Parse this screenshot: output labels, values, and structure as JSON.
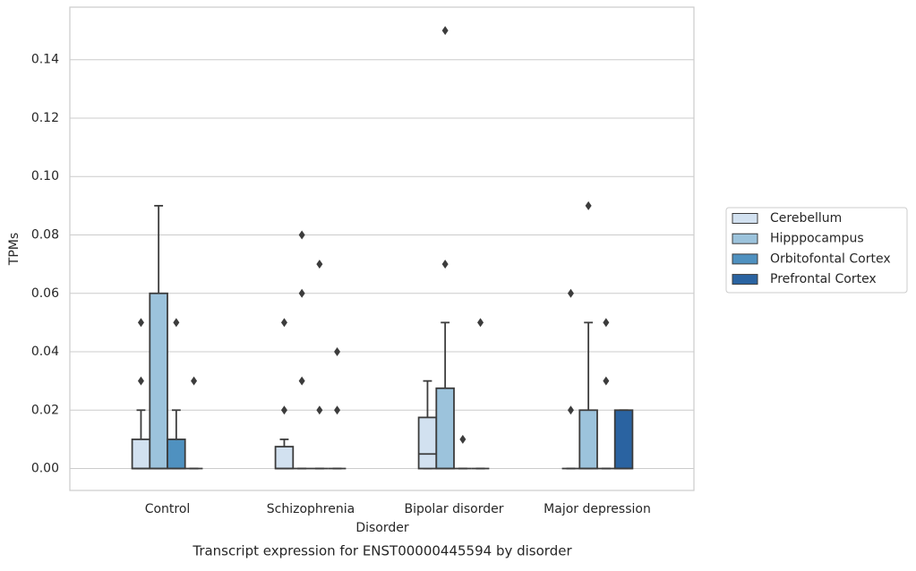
{
  "chart_data": {
    "type": "box",
    "title": "Transcript expression for ENST00000445594 by disorder",
    "x_label": "Disorder",
    "y_label": "TPMs",
    "categories": [
      "Control",
      "Schizophrenia",
      "Bipolar disorder",
      "Major depression"
    ],
    "ylim": [
      -0.0075,
      0.158
    ],
    "yticks": [
      {
        "value": 0,
        "label": "0.00"
      },
      {
        "value": 0.02,
        "label": "0.02"
      },
      {
        "value": 0.04,
        "label": "0.04"
      },
      {
        "value": 0.06,
        "label": "0.06"
      },
      {
        "value": 0.08,
        "label": "0.08"
      },
      {
        "value": 0.1,
        "label": "0.10"
      },
      {
        "value": 0.12,
        "label": "0.12"
      },
      {
        "value": 0.14,
        "label": "0.14"
      }
    ],
    "grid": "y",
    "legend": "right",
    "series": [
      {
        "name": "Cerebellum",
        "color": "#d2e1f0",
        "values": [
          {
            "min": 0,
            "q1": 0,
            "median": 0,
            "q3": 0.01,
            "max": 0.02,
            "outliers": [
              0.03,
              0.05
            ]
          },
          {
            "min": 0,
            "q1": 0,
            "median": 0,
            "q3": 0.0075,
            "max": 0.01,
            "outliers": [
              0.02,
              0.05
            ]
          },
          {
            "min": 0,
            "q1": 0,
            "median": 0.005,
            "q3": 0.0175,
            "max": 0.03,
            "outliers": []
          },
          {
            "min": 0,
            "q1": 0,
            "median": 0,
            "q3": 0,
            "max": 0,
            "outliers": [
              0.02,
              0.06
            ]
          }
        ]
      },
      {
        "name": "Hipppocampus",
        "color": "#9cc3dc",
        "values": [
          {
            "min": 0,
            "q1": 0,
            "median": 0,
            "q3": 0.06,
            "max": 0.09,
            "outliers": []
          },
          {
            "min": 0,
            "q1": 0,
            "median": 0,
            "q3": 0,
            "max": 0,
            "outliers": [
              0.03,
              0.06,
              0.08
            ]
          },
          {
            "min": 0,
            "q1": 0,
            "median": 0,
            "q3": 0.0275,
            "max": 0.05,
            "outliers": [
              0.07,
              0.15
            ]
          },
          {
            "min": 0,
            "q1": 0,
            "median": 0,
            "q3": 0.02,
            "max": 0.05,
            "outliers": [
              0.09
            ]
          }
        ]
      },
      {
        "name": "Orbitofontal Cortex",
        "color": "#4f91c0",
        "values": [
          {
            "min": 0,
            "q1": 0,
            "median": 0,
            "q3": 0.01,
            "max": 0.02,
            "outliers": [
              0.05
            ]
          },
          {
            "min": 0,
            "q1": 0,
            "median": 0,
            "q3": 0,
            "max": 0,
            "outliers": [
              0.02,
              0.07
            ]
          },
          {
            "min": 0,
            "q1": 0,
            "median": 0,
            "q3": 0,
            "max": 0,
            "outliers": [
              0.01
            ]
          },
          {
            "min": 0,
            "q1": 0,
            "median": 0,
            "q3": 0,
            "max": 0,
            "outliers": [
              0.03,
              0.05
            ]
          }
        ]
      },
      {
        "name": "Prefrontal Cortex",
        "color": "#2a63a1",
        "values": [
          {
            "min": 0,
            "q1": 0,
            "median": 0,
            "q3": 0,
            "max": 0,
            "outliers": [
              0.03
            ]
          },
          {
            "min": 0,
            "q1": 0,
            "median": 0,
            "q3": 0,
            "max": 0,
            "outliers": [
              0.02,
              0.04
            ]
          },
          {
            "min": 0,
            "q1": 0,
            "median": 0,
            "q3": 0,
            "max": 0,
            "outliers": [
              0.05
            ]
          },
          {
            "min": 0,
            "q1": 0,
            "median": 0,
            "q3": 0.02,
            "max": 0.02,
            "outliers": []
          }
        ]
      }
    ]
  }
}
